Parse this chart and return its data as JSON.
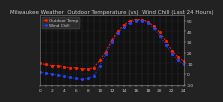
{
  "title": "Milwaukee Weather  Outdoor Temperature (vs)  Wind Chill (Last 24 Hours)",
  "background_color": "#222222",
  "plot_bg_color": "#111111",
  "temp_color": "#ff2200",
  "windchill_color": "#2244ff",
  "grid_color": "#555555",
  "ylim": [
    -10,
    55
  ],
  "xlim": [
    0,
    24
  ],
  "yticks": [
    50,
    40,
    30,
    20,
    10,
    0,
    -10
  ],
  "ytick_labels": [
    "50",
    "40",
    "30",
    "20",
    "10",
    "0",
    "-10"
  ],
  "xticks": [
    0,
    1,
    2,
    3,
    4,
    5,
    6,
    7,
    8,
    9,
    10,
    11,
    12,
    13,
    14,
    15,
    16,
    17,
    18,
    19,
    20,
    21,
    22,
    23,
    24
  ],
  "temp_data": [
    10,
    9,
    8,
    8,
    7,
    6,
    6,
    5,
    5,
    6,
    13,
    21,
    32,
    40,
    46,
    50,
    51,
    51,
    49,
    45,
    39,
    31,
    22,
    16,
    12
  ],
  "windchill_data": [
    2,
    1,
    0,
    -1,
    -2,
    -3,
    -4,
    -5,
    -4,
    -2,
    8,
    19,
    30,
    38,
    44,
    48,
    50,
    50,
    48,
    43,
    36,
    27,
    19,
    13,
    9
  ],
  "legend_temp": "Outdoor Temp",
  "legend_wc": "Wind Chill",
  "title_fontsize": 4.0,
  "tick_fontsize": 3.2,
  "legend_fontsize": 3.0,
  "title_color": "#cccccc",
  "tick_color": "#cccccc",
  "spine_color": "#888888"
}
